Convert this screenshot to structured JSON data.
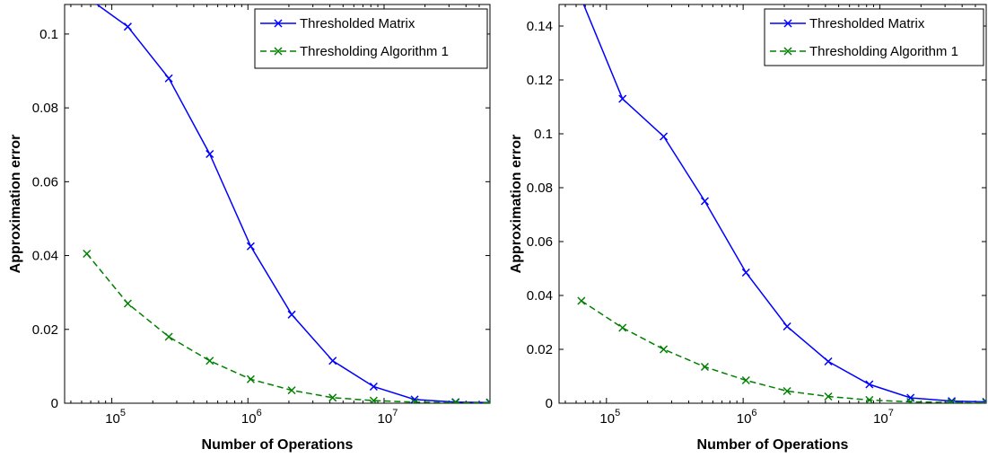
{
  "chart_data": [
    {
      "type": "line",
      "xscale": "log",
      "xlabel": "Number of Operations",
      "ylabel": "Approximation error",
      "xlim": [
        45000,
        60000000
      ],
      "ylim": [
        0,
        0.108
      ],
      "xticks": [
        {
          "value": 100000,
          "label": "10^5"
        },
        {
          "value": 1000000,
          "label": "10^6"
        },
        {
          "value": 10000000,
          "label": "10^7"
        }
      ],
      "yticks": [
        {
          "value": 0,
          "label": "0"
        },
        {
          "value": 0.02,
          "label": "0.02"
        },
        {
          "value": 0.04,
          "label": "0.04"
        },
        {
          "value": 0.06,
          "label": "0.06"
        },
        {
          "value": 0.08,
          "label": "0.08"
        },
        {
          "value": 0.1,
          "label": "0.1"
        }
      ],
      "grid": false,
      "legend": "top-right",
      "x": [
        65536,
        131072,
        262144,
        524288,
        1048576,
        2097152,
        4194304,
        8388608,
        16777216,
        33554432,
        60000000
      ],
      "series": [
        {
          "name": "Thresholded Matrix",
          "color": "#0000ff",
          "style": "solid",
          "marker": "x",
          "values": [
            0.11,
            0.102,
            0.088,
            0.0675,
            0.0425,
            0.024,
            0.0115,
            0.0045,
            0.001,
            0.0003,
            0.0002
          ]
        },
        {
          "name": "Thresholding Algorithm 1",
          "color": "#008000",
          "style": "dashed",
          "marker": "x",
          "values": [
            0.0405,
            0.027,
            0.018,
            0.0115,
            0.0065,
            0.0035,
            0.0015,
            0.0007,
            0.0003,
            0.0002,
            0.0001
          ]
        }
      ]
    },
    {
      "type": "line",
      "xscale": "log",
      "xlabel": "Number of Operations",
      "ylabel": "Approximation error",
      "xlim": [
        45000,
        60000000
      ],
      "ylim": [
        0,
        0.148
      ],
      "xticks": [
        {
          "value": 100000,
          "label": "10^5"
        },
        {
          "value": 1000000,
          "label": "10^6"
        },
        {
          "value": 10000000,
          "label": "10^7"
        }
      ],
      "yticks": [
        {
          "value": 0,
          "label": "0"
        },
        {
          "value": 0.02,
          "label": "0.02"
        },
        {
          "value": 0.04,
          "label": "0.04"
        },
        {
          "value": 0.06,
          "label": "0.06"
        },
        {
          "value": 0.08,
          "label": "0.08"
        },
        {
          "value": 0.1,
          "label": "0.1"
        },
        {
          "value": 0.12,
          "label": "0.12"
        },
        {
          "value": 0.14,
          "label": "0.14"
        }
      ],
      "grid": false,
      "legend": "top-right",
      "x": [
        65536,
        131072,
        262144,
        524288,
        1048576,
        2097152,
        4194304,
        8388608,
        16777216,
        33554432,
        60000000
      ],
      "series": [
        {
          "name": "Thresholded Matrix",
          "color": "#0000ff",
          "style": "solid",
          "marker": "x",
          "values": [
            0.15,
            0.113,
            0.099,
            0.075,
            0.0485,
            0.0285,
            0.0155,
            0.007,
            0.002,
            0.0008,
            0.0005
          ]
        },
        {
          "name": "Thresholding Algorithm 1",
          "color": "#008000",
          "style": "dashed",
          "marker": "x",
          "values": [
            0.038,
            0.028,
            0.02,
            0.0135,
            0.0085,
            0.0045,
            0.0025,
            0.0012,
            0.0005,
            0.0003,
            0.0002
          ]
        }
      ]
    }
  ]
}
